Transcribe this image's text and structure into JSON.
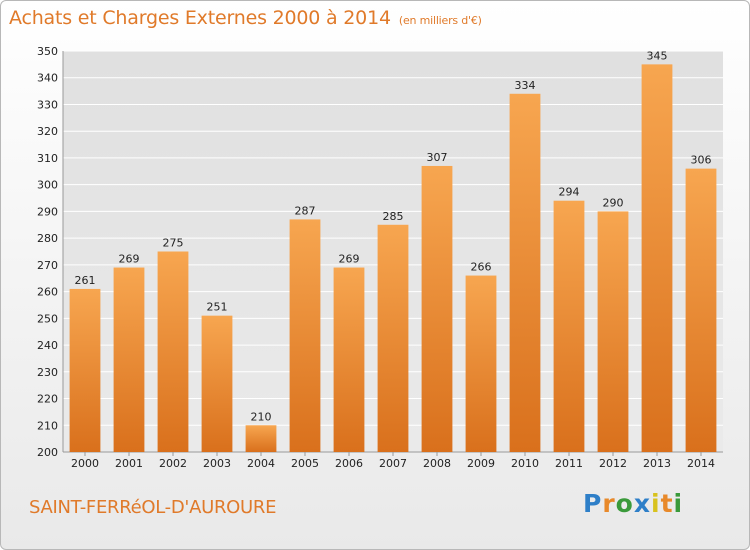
{
  "header": {
    "title": "Achats et Charges Externes 2000 à 2014",
    "unit": "(en milliers d'€)"
  },
  "footer": {
    "city": "SAINT-FERRéOL-D'AUROURE",
    "logo": "Proxiti"
  },
  "colors": {
    "accent": "#e07a2a",
    "bar_top": "#f7a650",
    "bar_bottom": "#d9701c",
    "grid": "#ffffff",
    "plot_bg": "#e3e3e3"
  },
  "chart_data": {
    "type": "bar",
    "title": "Achats et Charges Externes 2000 à 2014",
    "subtitle": "(en milliers d'€)",
    "xlabel": "",
    "ylabel": "",
    "categories": [
      "2000",
      "2001",
      "2002",
      "2003",
      "2004",
      "2005",
      "2006",
      "2007",
      "2008",
      "2009",
      "2010",
      "2011",
      "2012",
      "2013",
      "2014"
    ],
    "values": [
      261,
      269,
      275,
      251,
      210,
      287,
      269,
      285,
      307,
      266,
      334,
      294,
      290,
      345,
      306
    ],
    "ylim": [
      200,
      350
    ],
    "yticks": [
      200,
      210,
      220,
      230,
      240,
      250,
      260,
      270,
      280,
      290,
      300,
      310,
      320,
      330,
      340,
      350
    ],
    "grid": true,
    "data_labels": true
  }
}
